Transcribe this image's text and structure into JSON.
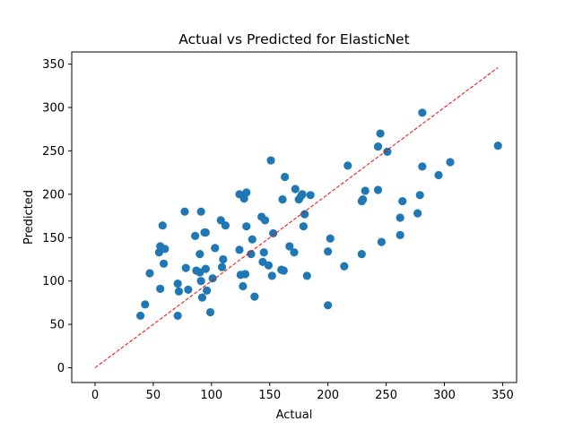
{
  "chart_data": {
    "type": "scatter",
    "title": "Actual vs Predicted for ElasticNet",
    "xlabel": "Actual",
    "ylabel": "Predicted",
    "xlim": [
      -20,
      362
    ],
    "ylim": [
      -17,
      364
    ],
    "xticks": [
      0,
      50,
      100,
      150,
      200,
      250,
      300,
      350
    ],
    "yticks": [
      0,
      50,
      100,
      150,
      200,
      250,
      300,
      350
    ],
    "grid": false,
    "point_color": "#1f77b4",
    "reference_line": {
      "x": [
        0,
        346
      ],
      "y": [
        0,
        346
      ],
      "color": "#ff0000",
      "style": "dashed"
    },
    "points": [
      [
        39,
        60
      ],
      [
        43,
        73
      ],
      [
        47,
        109
      ],
      [
        55,
        133
      ],
      [
        56,
        140
      ],
      [
        56,
        91
      ],
      [
        58,
        164
      ],
      [
        59,
        120
      ],
      [
        60,
        137
      ],
      [
        71,
        97
      ],
      [
        71,
        60
      ],
      [
        72,
        88
      ],
      [
        77,
        180
      ],
      [
        78,
        115
      ],
      [
        80,
        90
      ],
      [
        86,
        152
      ],
      [
        87,
        112
      ],
      [
        90,
        110
      ],
      [
        90,
        131
      ],
      [
        91,
        100
      ],
      [
        91,
        180
      ],
      [
        92,
        81
      ],
      [
        94,
        156
      ],
      [
        95,
        156
      ],
      [
        95,
        114
      ],
      [
        96,
        89
      ],
      [
        99,
        64
      ],
      [
        101,
        103
      ],
      [
        103,
        138
      ],
      [
        108,
        170
      ],
      [
        109,
        116
      ],
      [
        110,
        125
      ],
      [
        112,
        164
      ],
      [
        124,
        200
      ],
      [
        124,
        136
      ],
      [
        125,
        107
      ],
      [
        127,
        94
      ],
      [
        128,
        195
      ],
      [
        129,
        108
      ],
      [
        130,
        202
      ],
      [
        130,
        163
      ],
      [
        134,
        131
      ],
      [
        135,
        148
      ],
      [
        137,
        82
      ],
      [
        143,
        174
      ],
      [
        144,
        122
      ],
      [
        145,
        133
      ],
      [
        146,
        170
      ],
      [
        149,
        118
      ],
      [
        151,
        239
      ],
      [
        152,
        106
      ],
      [
        153,
        155
      ],
      [
        160,
        113
      ],
      [
        161,
        194
      ],
      [
        162,
        112
      ],
      [
        163,
        220
      ],
      [
        167,
        140
      ],
      [
        171,
        133
      ],
      [
        172,
        206
      ],
      [
        175,
        194
      ],
      [
        177,
        198
      ],
      [
        178,
        200
      ],
      [
        179,
        163
      ],
      [
        180,
        177
      ],
      [
        182,
        106
      ],
      [
        185,
        199
      ],
      [
        200,
        72
      ],
      [
        200,
        134
      ],
      [
        202,
        149
      ],
      [
        214,
        117
      ],
      [
        217,
        233
      ],
      [
        229,
        131
      ],
      [
        229,
        192
      ],
      [
        230,
        194
      ],
      [
        232,
        204
      ],
      [
        243,
        205
      ],
      [
        243,
        255
      ],
      [
        245,
        270
      ],
      [
        246,
        145
      ],
      [
        251,
        249
      ],
      [
        262,
        153
      ],
      [
        262,
        173
      ],
      [
        264,
        192
      ],
      [
        277,
        178
      ],
      [
        279,
        199
      ],
      [
        281,
        294
      ],
      [
        281,
        232
      ],
      [
        295,
        222
      ],
      [
        305,
        237
      ],
      [
        346,
        256
      ]
    ]
  }
}
